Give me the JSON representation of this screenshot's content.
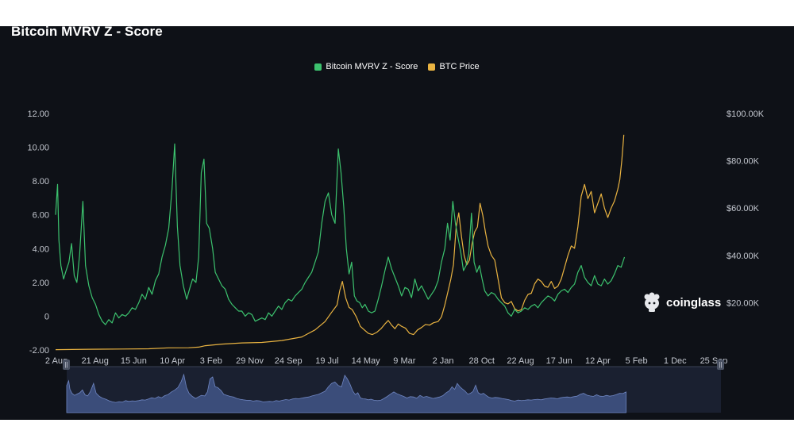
{
  "title": "Bitcoin MVRV Z - Score",
  "legend": [
    {
      "name": "Bitcoin MVRV Z - Score",
      "color": "#3cc26e"
    },
    {
      "name": "BTC Price",
      "color": "#e9b341"
    }
  ],
  "watermark": {
    "text": "coinglass",
    "icon": "coinglass-logo-icon"
  },
  "chart_data": {
    "type": "line",
    "title": "Bitcoin MVRV Z - Score",
    "x_tick_labels": [
      "2 Aug",
      "21 Aug",
      "15 Jun",
      "10 Apr",
      "3 Feb",
      "29 Nov",
      "24 Sep",
      "19 Jul",
      "14 May",
      "9 Mar",
      "2 Jan",
      "28 Oct",
      "22 Aug",
      "17 Jun",
      "12 Apr",
      "5 Feb",
      "1 Dec",
      "25 Sep"
    ],
    "y_left_ticks": [
      "12.00",
      "10.00",
      "8.00",
      "6.00",
      "4.00",
      "2.00",
      "0",
      "-2.00"
    ],
    "y_left_range": [
      -2,
      12
    ],
    "y_right_ticks": [
      "$100.00K",
      "$80.00K",
      "$60.00K",
      "$40.00K",
      "$20.00K"
    ],
    "y_right_range": [
      0,
      100000
    ],
    "grid": false,
    "legend_position": "top-center",
    "x_index_range": [
      0,
      100
    ],
    "series": [
      {
        "name": "Bitcoin MVRV Z - Score",
        "axis": "left",
        "color": "#3cc26e",
        "points": [
          [
            0,
            6.0
          ],
          [
            0.3,
            7.8
          ],
          [
            0.5,
            4.5
          ],
          [
            0.8,
            3.0
          ],
          [
            1.2,
            2.2
          ],
          [
            1.5,
            2.6
          ],
          [
            2.0,
            3.2
          ],
          [
            2.4,
            4.3
          ],
          [
            2.8,
            2.4
          ],
          [
            3.2,
            2.0
          ],
          [
            3.6,
            3.6
          ],
          [
            4.1,
            6.8
          ],
          [
            4.5,
            3.0
          ],
          [
            5.0,
            1.8
          ],
          [
            5.5,
            1.1
          ],
          [
            6.0,
            0.7
          ],
          [
            6.5,
            0.1
          ],
          [
            7.0,
            -0.3
          ],
          [
            7.5,
            -0.5
          ],
          [
            8.0,
            -0.2
          ],
          [
            8.5,
            -0.4
          ],
          [
            9.0,
            0.2
          ],
          [
            9.5,
            -0.1
          ],
          [
            10.0,
            0.1
          ],
          [
            10.5,
            0.0
          ],
          [
            11.0,
            0.2
          ],
          [
            11.5,
            0.5
          ],
          [
            12.0,
            0.4
          ],
          [
            12.5,
            0.8
          ],
          [
            13.0,
            1.3
          ],
          [
            13.5,
            1.0
          ],
          [
            14.0,
            1.7
          ],
          [
            14.5,
            1.3
          ],
          [
            15.0,
            2.1
          ],
          [
            15.5,
            2.5
          ],
          [
            16.0,
            3.5
          ],
          [
            16.5,
            4.2
          ],
          [
            17.0,
            5.2
          ],
          [
            17.5,
            7.5
          ],
          [
            17.9,
            10.2
          ],
          [
            18.3,
            5.3
          ],
          [
            18.7,
            3.0
          ],
          [
            19.2,
            1.8
          ],
          [
            19.7,
            1.0
          ],
          [
            20.2,
            1.7
          ],
          [
            20.6,
            2.2
          ],
          [
            21.1,
            2.0
          ],
          [
            21.5,
            3.5
          ],
          [
            21.9,
            8.5
          ],
          [
            22.3,
            9.3
          ],
          [
            22.7,
            5.5
          ],
          [
            23.1,
            5.2
          ],
          [
            23.6,
            4.0
          ],
          [
            24.0,
            2.6
          ],
          [
            24.5,
            2.2
          ],
          [
            25.0,
            1.8
          ],
          [
            25.5,
            1.6
          ],
          [
            26.0,
            1.0
          ],
          [
            26.5,
            0.7
          ],
          [
            27.0,
            0.5
          ],
          [
            27.5,
            0.3
          ],
          [
            28.0,
            0.3
          ],
          [
            28.5,
            0.0
          ],
          [
            29.0,
            0.2
          ],
          [
            29.5,
            0.1
          ],
          [
            30.0,
            -0.3
          ],
          [
            30.5,
            -0.2
          ],
          [
            31.0,
            -0.1
          ],
          [
            31.5,
            -0.2
          ],
          [
            32.0,
            0.2
          ],
          [
            32.5,
            0.0
          ],
          [
            33.0,
            0.3
          ],
          [
            33.5,
            0.6
          ],
          [
            34.0,
            0.4
          ],
          [
            34.5,
            0.8
          ],
          [
            35.0,
            1.0
          ],
          [
            35.5,
            0.9
          ],
          [
            36.0,
            1.2
          ],
          [
            36.5,
            1.4
          ],
          [
            37.0,
            1.6
          ],
          [
            37.5,
            2.0
          ],
          [
            38.0,
            2.3
          ],
          [
            38.5,
            2.6
          ],
          [
            39.0,
            3.2
          ],
          [
            39.5,
            3.8
          ],
          [
            40.0,
            5.5
          ],
          [
            40.5,
            6.8
          ],
          [
            41.0,
            7.3
          ],
          [
            41.5,
            6.0
          ],
          [
            42.0,
            5.5
          ],
          [
            42.5,
            9.9
          ],
          [
            42.9,
            8.5
          ],
          [
            43.3,
            6.5
          ],
          [
            43.7,
            4.0
          ],
          [
            44.1,
            2.5
          ],
          [
            44.5,
            3.2
          ],
          [
            44.9,
            1.2
          ],
          [
            45.3,
            0.9
          ],
          [
            45.7,
            0.8
          ],
          [
            46.1,
            0.5
          ],
          [
            46.5,
            0.7
          ],
          [
            47.0,
            0.3
          ],
          [
            47.5,
            0.2
          ],
          [
            48.0,
            0.3
          ],
          [
            48.5,
            1.0
          ],
          [
            49.0,
            1.8
          ],
          [
            49.5,
            2.7
          ],
          [
            50.0,
            3.5
          ],
          [
            50.5,
            2.8
          ],
          [
            51.0,
            2.3
          ],
          [
            51.5,
            1.8
          ],
          [
            52.0,
            1.2
          ],
          [
            52.5,
            1.7
          ],
          [
            53.0,
            1.6
          ],
          [
            53.5,
            1.1
          ],
          [
            54.0,
            2.2
          ],
          [
            54.5,
            1.5
          ],
          [
            55.0,
            1.8
          ],
          [
            55.5,
            1.4
          ],
          [
            56.0,
            1.0
          ],
          [
            56.5,
            1.3
          ],
          [
            57.0,
            1.6
          ],
          [
            57.5,
            2.1
          ],
          [
            58.0,
            3.2
          ],
          [
            58.5,
            4.0
          ],
          [
            58.9,
            5.5
          ],
          [
            59.3,
            4.5
          ],
          [
            59.7,
            6.8
          ],
          [
            60.1,
            5.5
          ],
          [
            60.5,
            4.6
          ],
          [
            60.9,
            3.8
          ],
          [
            61.3,
            2.7
          ],
          [
            61.7,
            3.0
          ],
          [
            62.1,
            3.7
          ],
          [
            62.5,
            6.1
          ],
          [
            62.9,
            3.2
          ],
          [
            63.3,
            2.6
          ],
          [
            63.7,
            3.0
          ],
          [
            64.1,
            2.2
          ],
          [
            64.5,
            1.5
          ],
          [
            65.0,
            1.2
          ],
          [
            65.5,
            1.4
          ],
          [
            66.0,
            1.3
          ],
          [
            66.5,
            1.0
          ],
          [
            67.0,
            0.8
          ],
          [
            67.5,
            0.6
          ],
          [
            68.0,
            0.2
          ],
          [
            68.5,
            0.0
          ],
          [
            69.0,
            0.4
          ],
          [
            69.5,
            0.2
          ],
          [
            70.0,
            0.3
          ],
          [
            70.5,
            0.5
          ],
          [
            71.0,
            0.4
          ],
          [
            71.5,
            0.6
          ],
          [
            72.0,
            0.7
          ],
          [
            72.5,
            0.5
          ],
          [
            73.0,
            0.8
          ],
          [
            73.5,
            1.0
          ],
          [
            74.0,
            1.2
          ],
          [
            74.5,
            1.1
          ],
          [
            75.0,
            0.9
          ],
          [
            75.5,
            1.3
          ],
          [
            76.0,
            1.5
          ],
          [
            76.5,
            1.6
          ],
          [
            77.0,
            1.4
          ],
          [
            77.5,
            1.7
          ],
          [
            78.0,
            1.9
          ],
          [
            78.5,
            2.6
          ],
          [
            79.0,
            3.0
          ],
          [
            79.5,
            2.3
          ],
          [
            80.0,
            2.0
          ],
          [
            80.5,
            1.8
          ],
          [
            81.0,
            2.4
          ],
          [
            81.5,
            1.9
          ],
          [
            82.0,
            1.8
          ],
          [
            82.5,
            2.2
          ],
          [
            83.0,
            1.9
          ],
          [
            83.5,
            2.1
          ],
          [
            84.0,
            2.5
          ],
          [
            84.5,
            3.0
          ],
          [
            85.0,
            2.9
          ],
          [
            85.5,
            3.5
          ]
        ]
      },
      {
        "name": "BTC Price",
        "axis": "right",
        "color": "#e9b341",
        "points": [
          [
            0,
            150
          ],
          [
            5,
            300
          ],
          [
            10,
            400
          ],
          [
            14,
            500
          ],
          [
            17,
            900
          ],
          [
            20,
            950
          ],
          [
            21.5,
            1200
          ],
          [
            22.5,
            1800
          ],
          [
            25,
            2500
          ],
          [
            28,
            3000
          ],
          [
            31,
            3200
          ],
          [
            34,
            4000
          ],
          [
            37,
            5500
          ],
          [
            39,
            8500
          ],
          [
            40.5,
            12000
          ],
          [
            41.5,
            16000
          ],
          [
            42.3,
            19000
          ],
          [
            42.7,
            25000
          ],
          [
            43.1,
            29000
          ],
          [
            43.6,
            22000
          ],
          [
            44.1,
            18000
          ],
          [
            44.6,
            17000
          ],
          [
            45.2,
            14000
          ],
          [
            45.8,
            10000
          ],
          [
            46.4,
            8500
          ],
          [
            47.0,
            7000
          ],
          [
            47.6,
            6500
          ],
          [
            48.3,
            7500
          ],
          [
            48.9,
            9000
          ],
          [
            49.5,
            11000
          ],
          [
            50.0,
            12500
          ],
          [
            50.5,
            10500
          ],
          [
            51.0,
            9000
          ],
          [
            51.5,
            11000
          ],
          [
            52.0,
            10000
          ],
          [
            52.6,
            9200
          ],
          [
            53.2,
            7000
          ],
          [
            53.8,
            6500
          ],
          [
            54.4,
            8500
          ],
          [
            55.0,
            9500
          ],
          [
            55.6,
            10800
          ],
          [
            56.2,
            10500
          ],
          [
            56.8,
            11500
          ],
          [
            57.5,
            12000
          ],
          [
            58.0,
            14000
          ],
          [
            58.5,
            19000
          ],
          [
            59.0,
            25000
          ],
          [
            59.4,
            30000
          ],
          [
            59.8,
            36000
          ],
          [
            60.2,
            52000
          ],
          [
            60.6,
            58000
          ],
          [
            61.0,
            48000
          ],
          [
            61.4,
            40000
          ],
          [
            61.8,
            36000
          ],
          [
            62.2,
            38000
          ],
          [
            62.6,
            45000
          ],
          [
            63.0,
            50000
          ],
          [
            63.4,
            52000
          ],
          [
            63.8,
            62000
          ],
          [
            64.2,
            57000
          ],
          [
            64.6,
            50000
          ],
          [
            65.0,
            44000
          ],
          [
            65.5,
            40000
          ],
          [
            66.0,
            38000
          ],
          [
            66.5,
            30000
          ],
          [
            67.0,
            22000
          ],
          [
            67.5,
            20000
          ],
          [
            68.0,
            19500
          ],
          [
            68.5,
            20500
          ],
          [
            69.0,
            17500
          ],
          [
            69.5,
            16500
          ],
          [
            70.0,
            17000
          ],
          [
            70.5,
            21000
          ],
          [
            71.0,
            23500
          ],
          [
            71.5,
            24000
          ],
          [
            72.0,
            28000
          ],
          [
            72.5,
            30000
          ],
          [
            73.0,
            29000
          ],
          [
            73.5,
            27000
          ],
          [
            74.0,
            26500
          ],
          [
            74.5,
            29000
          ],
          [
            75.0,
            26000
          ],
          [
            75.5,
            27000
          ],
          [
            76.0,
            30000
          ],
          [
            76.5,
            35000
          ],
          [
            77.0,
            40000
          ],
          [
            77.5,
            44000
          ],
          [
            78.0,
            43000
          ],
          [
            78.5,
            52000
          ],
          [
            79.0,
            65000
          ],
          [
            79.5,
            70000
          ],
          [
            80.0,
            64000
          ],
          [
            80.5,
            67000
          ],
          [
            81.0,
            58000
          ],
          [
            81.5,
            62000
          ],
          [
            82.0,
            66000
          ],
          [
            82.5,
            60000
          ],
          [
            83.0,
            56000
          ],
          [
            83.5,
            60000
          ],
          [
            84.0,
            63000
          ],
          [
            84.5,
            68000
          ],
          [
            84.8,
            72000
          ],
          [
            85.1,
            80000
          ],
          [
            85.4,
            91000
          ]
        ]
      }
    ]
  }
}
